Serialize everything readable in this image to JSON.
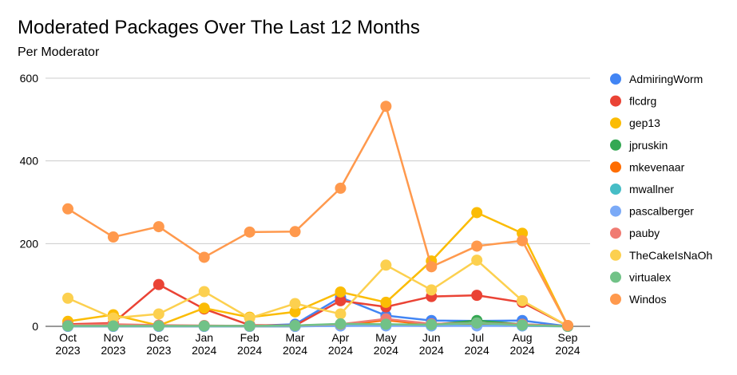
{
  "chart_data": {
    "type": "line",
    "title": "Moderated Packages Over The Last 12 Months",
    "subtitle": "Per Moderator",
    "xlabel": "",
    "ylabel": "",
    "ylim": [
      0,
      600
    ],
    "yticks": [
      0,
      200,
      400,
      600
    ],
    "categories": [
      [
        "Oct",
        "2023"
      ],
      [
        "Nov",
        "2023"
      ],
      [
        "Dec",
        "2023"
      ],
      [
        "Jan",
        "2024"
      ],
      [
        "Feb",
        "2024"
      ],
      [
        "Mar",
        "2024"
      ],
      [
        "Apr",
        "2024"
      ],
      [
        "May",
        "2024"
      ],
      [
        "Jun",
        "2024"
      ],
      [
        "Jul",
        "2024"
      ],
      [
        "Aug",
        "2024"
      ],
      [
        "Sep",
        "2024"
      ]
    ],
    "legend_position": "right",
    "grid": true,
    "series": [
      {
        "name": "AdmiringWorm",
        "color": "#4285f4",
        "values": [
          2,
          3,
          2,
          1,
          1,
          5,
          70,
          26,
          14,
          13,
          14,
          0
        ]
      },
      {
        "name": "flcdrg",
        "color": "#ea4335",
        "values": [
          5,
          8,
          101,
          42,
          3,
          2,
          62,
          47,
          72,
          75,
          58,
          1
        ]
      },
      {
        "name": "gep13",
        "color": "#fbbc04",
        "values": [
          12,
          28,
          2,
          44,
          22,
          35,
          83,
          58,
          158,
          275,
          225,
          2
        ]
      },
      {
        "name": "jpruskin",
        "color": "#34a853",
        "values": [
          1,
          1,
          2,
          1,
          1,
          1,
          3,
          3,
          4,
          14,
          5,
          0
        ]
      },
      {
        "name": "mkevenaar",
        "color": "#ff6d01",
        "values": [
          0,
          0,
          0,
          0,
          0,
          0,
          2,
          15,
          3,
          5,
          3,
          0
        ]
      },
      {
        "name": "mwallner",
        "color": "#46bdc6",
        "values": [
          0,
          0,
          0,
          0,
          0,
          0,
          1,
          2,
          1,
          2,
          1,
          0
        ]
      },
      {
        "name": "pascalberger",
        "color": "#7baaf7",
        "values": [
          0,
          0,
          0,
          0,
          0,
          0,
          1,
          1,
          1,
          1,
          1,
          0
        ]
      },
      {
        "name": "pauby",
        "color": "#f07b72",
        "values": [
          3,
          5,
          3,
          2,
          1,
          2,
          5,
          18,
          6,
          8,
          5,
          0
        ]
      },
      {
        "name": "TheCakeIsNaOh",
        "color": "#fcd04f",
        "values": [
          68,
          20,
          30,
          84,
          20,
          55,
          30,
          148,
          88,
          160,
          62,
          1
        ]
      },
      {
        "name": "virtualex",
        "color": "#71c287",
        "values": [
          1,
          1,
          1,
          1,
          1,
          2,
          6,
          5,
          4,
          8,
          3,
          0
        ]
      },
      {
        "name": "Windos",
        "color": "#ff994d",
        "values": [
          284,
          216,
          241,
          167,
          228,
          229,
          334,
          532,
          144,
          194,
          207,
          2
        ]
      }
    ]
  }
}
